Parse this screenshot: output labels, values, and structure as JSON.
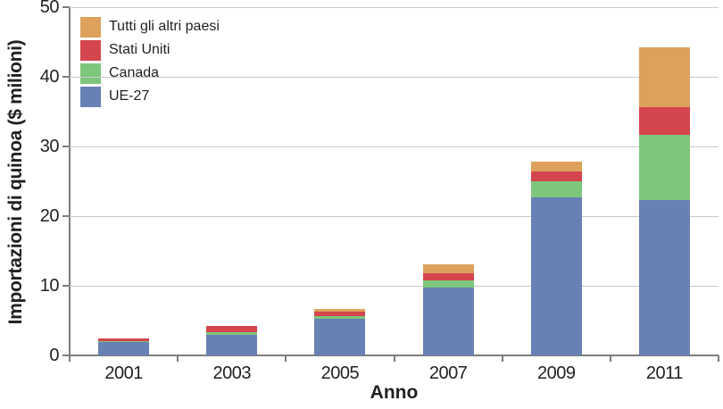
{
  "chart_data": {
    "type": "bar",
    "stacked": true,
    "title": "",
    "xlabel": "Anno",
    "ylabel": "Importazioni di quinoa ($ milioni)",
    "categories": [
      "2001",
      "2003",
      "2005",
      "2007",
      "2009",
      "2011"
    ],
    "series": [
      {
        "name": "UE-27",
        "color": "#6781B4",
        "values": [
          2.0,
          3.0,
          5.3,
          9.8,
          22.7,
          22.3
        ]
      },
      {
        "name": "Canada",
        "color": "#7EC67B",
        "values": [
          0.1,
          0.4,
          0.4,
          1.0,
          2.3,
          9.4
        ]
      },
      {
        "name": "Stati Uniti",
        "color": "#D4454E",
        "values": [
          0.35,
          0.9,
          0.6,
          1.0,
          1.4,
          3.9
        ]
      },
      {
        "name": "Tutti gli altri paesi",
        "color": "#DDA15B",
        "values": [
          0.0,
          0.0,
          0.4,
          1.3,
          1.4,
          8.7
        ]
      }
    ],
    "legend_order_top_to_bottom": [
      "Tutti gli altri paesi",
      "Stati Uniti",
      "Canada",
      "UE-27"
    ],
    "ylim": [
      0,
      50
    ],
    "yticks": [
      0,
      10,
      20,
      30,
      40,
      50
    ],
    "grid": true,
    "legend_position": "top-left"
  },
  "colors": {
    "text": "#231f20",
    "gridline": "#c9c9c9",
    "axis": "#7d7d7d",
    "background": "#ffffff"
  }
}
